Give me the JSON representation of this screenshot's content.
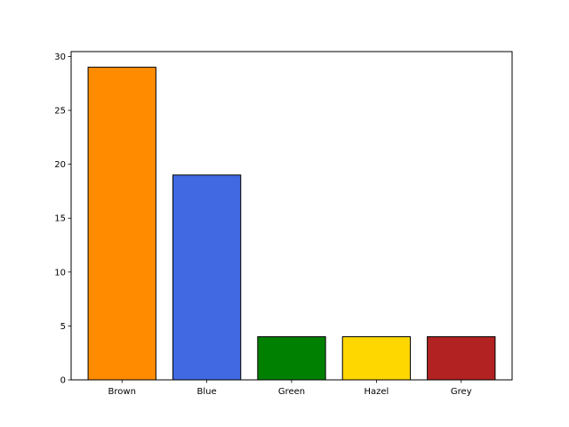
{
  "chart_data": {
    "type": "bar",
    "title": "",
    "xlabel": "",
    "ylabel": "",
    "categories": [
      "Brown",
      "Blue",
      "Green",
      "Hazel",
      "Grey"
    ],
    "values": [
      29,
      19,
      4,
      4,
      4
    ],
    "colors": [
      "#FF8C00",
      "#4169E1",
      "#008000",
      "#FFD700",
      "#B22222"
    ],
    "ylim": [
      0,
      30.45
    ],
    "yticks": [
      0,
      5,
      10,
      15,
      20,
      25,
      30
    ],
    "grid": false,
    "legend": "none"
  }
}
